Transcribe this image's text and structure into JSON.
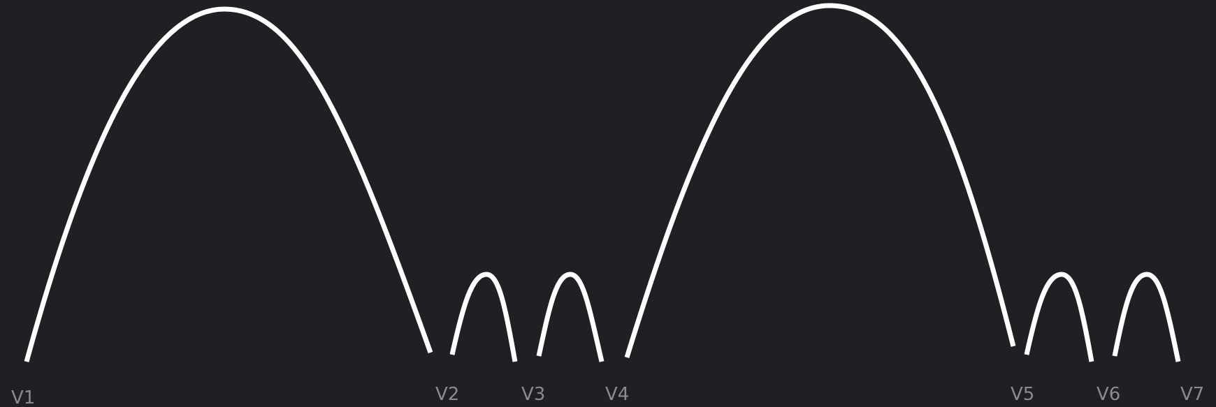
{
  "colors": {
    "background": "#1f2023",
    "arc": "#ffffff",
    "label": "#8a8b8f"
  },
  "labels": [
    "V1",
    "V2",
    "V3",
    "V4",
    "V5",
    "V6",
    "V7"
  ]
}
